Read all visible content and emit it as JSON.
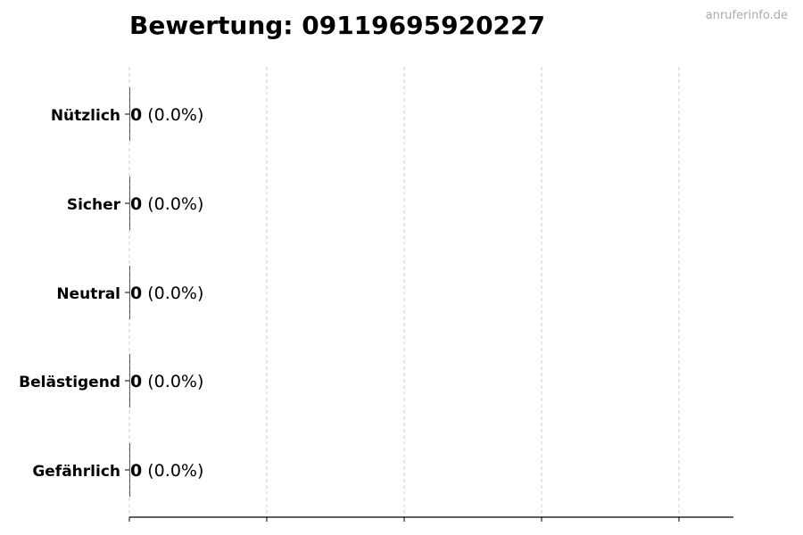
{
  "title": "Bewertung: 09119695920227",
  "watermark": "anruferinfo.de",
  "chart_data": {
    "type": "bar",
    "orientation": "horizontal",
    "title": "Bewertung: 09119695920227",
    "categories": [
      "Nützlich",
      "Sicher",
      "Neutral",
      "Belästigend",
      "Gefährlich"
    ],
    "values": [
      0,
      0,
      0,
      0,
      0
    ],
    "data_labels": [
      {
        "count": "0",
        "percent": "(0.0%)"
      },
      {
        "count": "0",
        "percent": "(0.0%)"
      },
      {
        "count": "0",
        "percent": "(0.0%)"
      },
      {
        "count": "0",
        "percent": "(0.0%)"
      },
      {
        "count": "0",
        "percent": "(0.0%)"
      }
    ],
    "xlabel": "",
    "ylabel": "",
    "grid": "vertical dashed",
    "colors": {
      "grid": "#cccccc",
      "axis": "#000000",
      "bar_edge": "#333333"
    }
  }
}
